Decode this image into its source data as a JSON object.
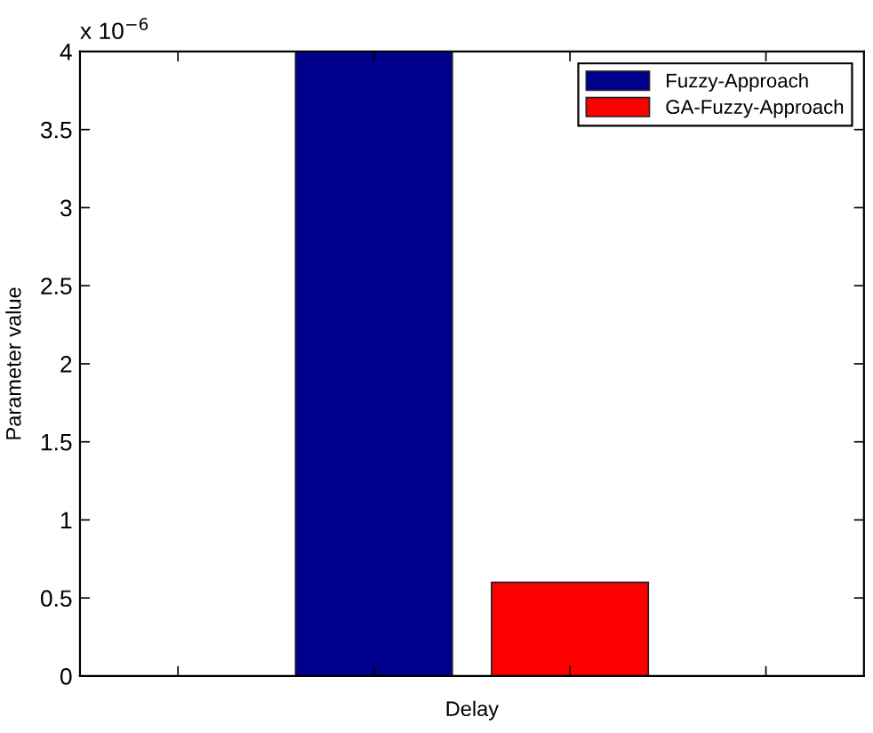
{
  "chart_data": {
    "type": "bar",
    "xlabel": "Delay",
    "ylabel": "Parameter value",
    "annotations": [
      "x 10$^{−6}$"
    ],
    "categories": [
      null,
      null,
      null,
      null
    ],
    "series": [
      {
        "name": "Fuzzy-Approach",
        "color": "#00008f",
        "values": [
          null,
          4,
          null,
          null
        ]
      },
      {
        "name": "GA-Fuzzy-Approach",
        "color": "#ff0000",
        "values": [
          null,
          null,
          0.6,
          null
        ]
      }
    ],
    "ylim": [
      0,
      4
    ],
    "yticks": [
      0,
      0.5,
      1,
      1.5,
      2,
      2.5,
      3,
      3.5,
      4
    ],
    "tick_labels": "y",
    "grid": false,
    "legend": "top right"
  }
}
